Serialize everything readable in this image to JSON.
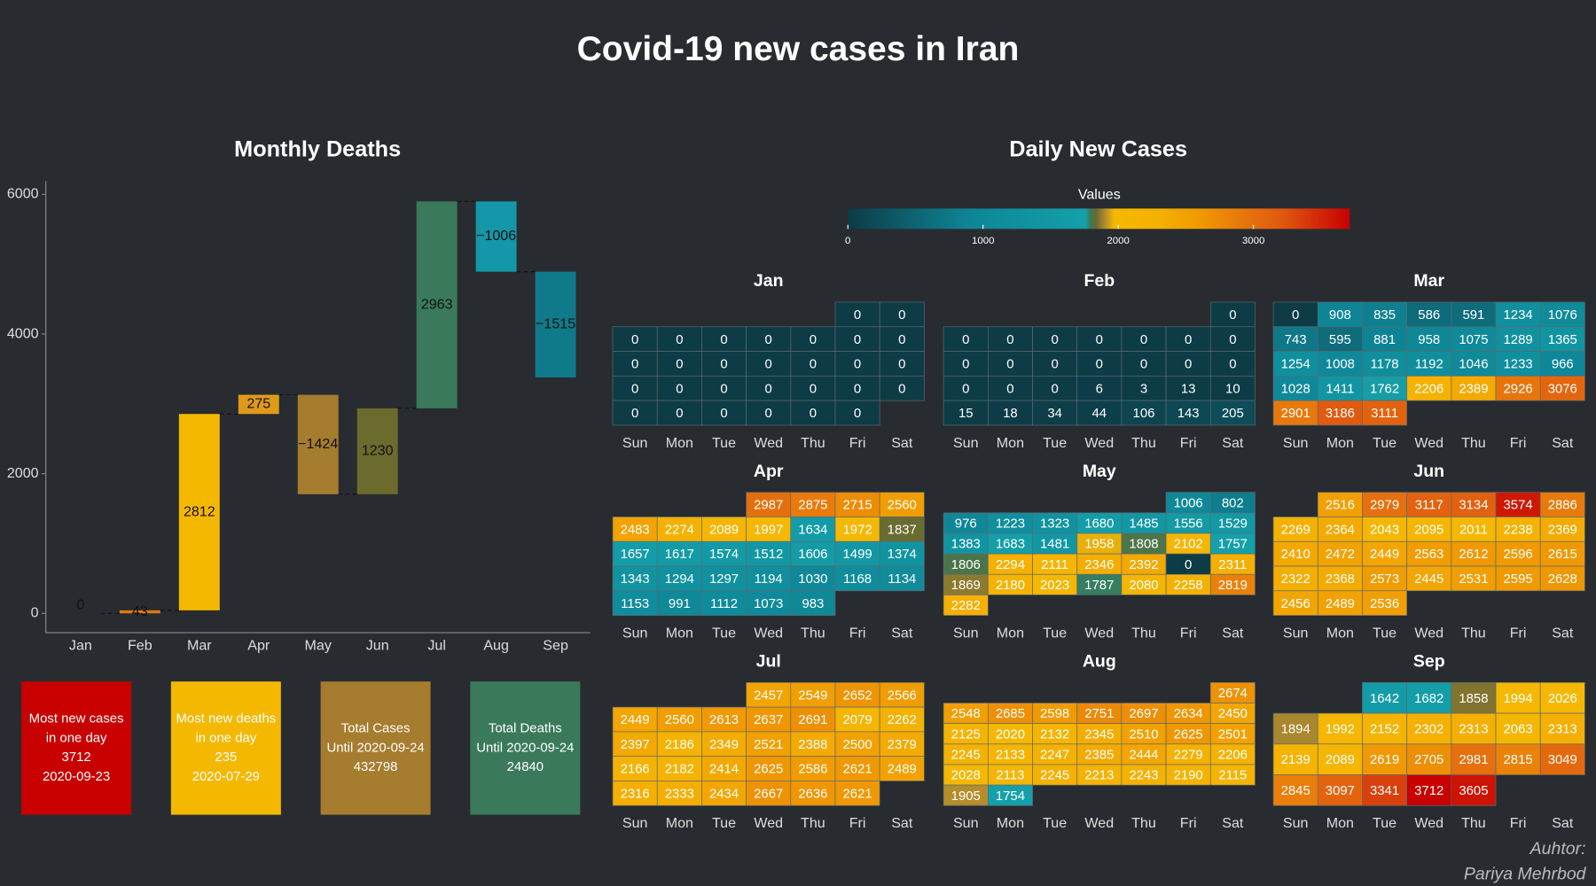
{
  "title": "Covid-19 new cases in Iran",
  "chart_data": [
    {
      "type": "waterfall",
      "title": "Monthly Deaths",
      "categories": [
        "Jan",
        "Feb",
        "Mar",
        "Apr",
        "May",
        "Jun",
        "Jul",
        "Aug",
        "Sep"
      ],
      "values": [
        0,
        43,
        2812,
        275,
        -1424,
        1230,
        2963,
        -1006,
        -1515
      ],
      "value_labels": [
        "0",
        "43",
        "2812",
        "275",
        "−1424",
        "1230",
        "2963",
        "−1006",
        "−1515"
      ],
      "colors": [
        "#e07b10",
        "#e07b10",
        "#f5b800",
        "#e09a1a",
        "#a67c2e",
        "#6b6b2e",
        "#3a7a5a",
        "#1497a8",
        "#0f7a8a"
      ],
      "ylim": [
        -277,
        6190
      ],
      "yticks": [
        0,
        2000,
        4000,
        6000
      ]
    },
    {
      "type": "calendar_heatmap",
      "title": "Daily New Cases",
      "colorbar_title": "Values",
      "clim": [
        0,
        3712
      ],
      "cticks": [
        0,
        1000,
        2000,
        3000
      ],
      "colorscale": [
        [
          0,
          "#0d3b46"
        ],
        [
          900,
          "#0e8596"
        ],
        [
          1760,
          "#14a0aa"
        ],
        [
          1790,
          "#3a7a5a"
        ],
        [
          1840,
          "#6b6b2e"
        ],
        [
          1900,
          "#b08a2e"
        ],
        [
          1970,
          "#f5b800"
        ],
        [
          2300,
          "#f5b000"
        ],
        [
          2600,
          "#f09a00"
        ],
        [
          2900,
          "#e8780c"
        ],
        [
          3200,
          "#e05a10"
        ],
        [
          3712,
          "#c80000"
        ]
      ],
      "weekdays": [
        "Sun",
        "Mon",
        "Tue",
        "Wed",
        "Thu",
        "Fri",
        "Sat"
      ],
      "months": [
        {
          "name": "Jan",
          "weeks": [
            [
              null,
              null,
              null,
              null,
              null,
              0,
              0
            ],
            [
              0,
              0,
              0,
              0,
              0,
              0,
              0
            ],
            [
              0,
              0,
              0,
              0,
              0,
              0,
              0
            ],
            [
              0,
              0,
              0,
              0,
              0,
              0,
              0
            ],
            [
              0,
              0,
              0,
              0,
              0,
              0,
              null
            ]
          ]
        },
        {
          "name": "Feb",
          "weeks": [
            [
              null,
              null,
              null,
              null,
              null,
              null,
              0
            ],
            [
              0,
              0,
              0,
              0,
              0,
              0,
              0
            ],
            [
              0,
              0,
              0,
              0,
              0,
              0,
              0
            ],
            [
              0,
              0,
              0,
              6,
              3,
              13,
              10
            ],
            [
              15,
              18,
              34,
              44,
              106,
              143,
              205
            ]
          ]
        },
        {
          "name": "Mar",
          "weeks": [
            [
              0,
              908,
              835,
              586,
              591,
              1234,
              1076
            ],
            [
              743,
              595,
              881,
              958,
              1075,
              1289,
              1365
            ],
            [
              1254,
              1008,
              1178,
              1192,
              1046,
              1233,
              966
            ],
            [
              1028,
              1411,
              1762,
              2206,
              2389,
              2926,
              3076
            ],
            [
              2901,
              3186,
              3111,
              null,
              null,
              null,
              null
            ]
          ]
        },
        {
          "name": "Apr",
          "weeks": [
            [
              null,
              null,
              null,
              2987,
              2875,
              2715,
              2560
            ],
            [
              2483,
              2274,
              2089,
              1997,
              1634,
              1972,
              1837
            ],
            [
              1657,
              1617,
              1574,
              1512,
              1606,
              1499,
              1374
            ],
            [
              1343,
              1294,
              1297,
              1194,
              1030,
              1168,
              1134
            ],
            [
              1153,
              991,
              1112,
              1073,
              983,
              null,
              null
            ]
          ]
        },
        {
          "name": "May",
          "weeks": [
            [
              null,
              null,
              null,
              null,
              null,
              1006,
              802
            ],
            [
              976,
              1223,
              1323,
              1680,
              1485,
              1556,
              1529
            ],
            [
              1383,
              1683,
              1481,
              1958,
              1808,
              2102,
              1757
            ],
            [
              1806,
              2294,
              2111,
              2346,
              2392,
              0,
              2311
            ],
            [
              1869,
              2180,
              2023,
              1787,
              2080,
              2258,
              2819
            ],
            [
              2282,
              null,
              null,
              null,
              null,
              null,
              null
            ]
          ]
        },
        {
          "name": "Jun",
          "weeks": [
            [
              null,
              2516,
              2979,
              3117,
              3134,
              3574,
              2886
            ],
            [
              2269,
              2364,
              2043,
              2095,
              2011,
              2238,
              2369
            ],
            [
              2410,
              2472,
              2449,
              2563,
              2612,
              2596,
              2615
            ],
            [
              2322,
              2368,
              2573,
              2445,
              2531,
              2595,
              2628
            ],
            [
              2456,
              2489,
              2536,
              null,
              null,
              null,
              null
            ]
          ]
        },
        {
          "name": "Jul",
          "weeks": [
            [
              null,
              null,
              null,
              2457,
              2549,
              2652,
              2566
            ],
            [
              2449,
              2560,
              2613,
              2637,
              2691,
              2079,
              2262
            ],
            [
              2397,
              2186,
              2349,
              2521,
              2388,
              2500,
              2379
            ],
            [
              2166,
              2182,
              2414,
              2625,
              2586,
              2621,
              2489
            ],
            [
              2316,
              2333,
              2434,
              2667,
              2636,
              2621,
              null
            ]
          ]
        },
        {
          "name": "Aug",
          "weeks": [
            [
              null,
              null,
              null,
              null,
              null,
              null,
              2674
            ],
            [
              2548,
              2685,
              2598,
              2751,
              2697,
              2634,
              2450
            ],
            [
              2125,
              2020,
              2132,
              2345,
              2510,
              2625,
              2501
            ],
            [
              2245,
              2133,
              2247,
              2385,
              2444,
              2279,
              2206
            ],
            [
              2028,
              2113,
              2245,
              2213,
              2243,
              2190,
              2115
            ],
            [
              1905,
              1754,
              null,
              null,
              null,
              null,
              null
            ]
          ]
        },
        {
          "name": "Sep",
          "weeks": [
            [
              null,
              null,
              1642,
              1682,
              1858,
              1994,
              2026
            ],
            [
              1894,
              1992,
              2152,
              2302,
              2313,
              2063,
              2313
            ],
            [
              2139,
              2089,
              2619,
              2705,
              2981,
              2815,
              3049
            ],
            [
              2845,
              3097,
              3341,
              3712,
              3605,
              null,
              null
            ]
          ]
        }
      ]
    }
  ],
  "cards": [
    {
      "color": "#c80000",
      "lines": [
        "Most new cases",
        "in one day",
        "3712",
        "2020-09-23"
      ]
    },
    {
      "color": "#f5b800",
      "lines": [
        "Most new deaths",
        "in one day",
        "235",
        "2020-07-29"
      ]
    },
    {
      "color": "#a67c2e",
      "lines": [
        "Total Cases",
        "Until 2020-09-24",
        "432798"
      ]
    },
    {
      "color": "#3a7a5a",
      "lines": [
        "Total Deaths",
        "Until 2020-09-24",
        "24840"
      ]
    }
  ],
  "author": [
    "Auhtor:",
    "Pariya Mehrbod"
  ]
}
